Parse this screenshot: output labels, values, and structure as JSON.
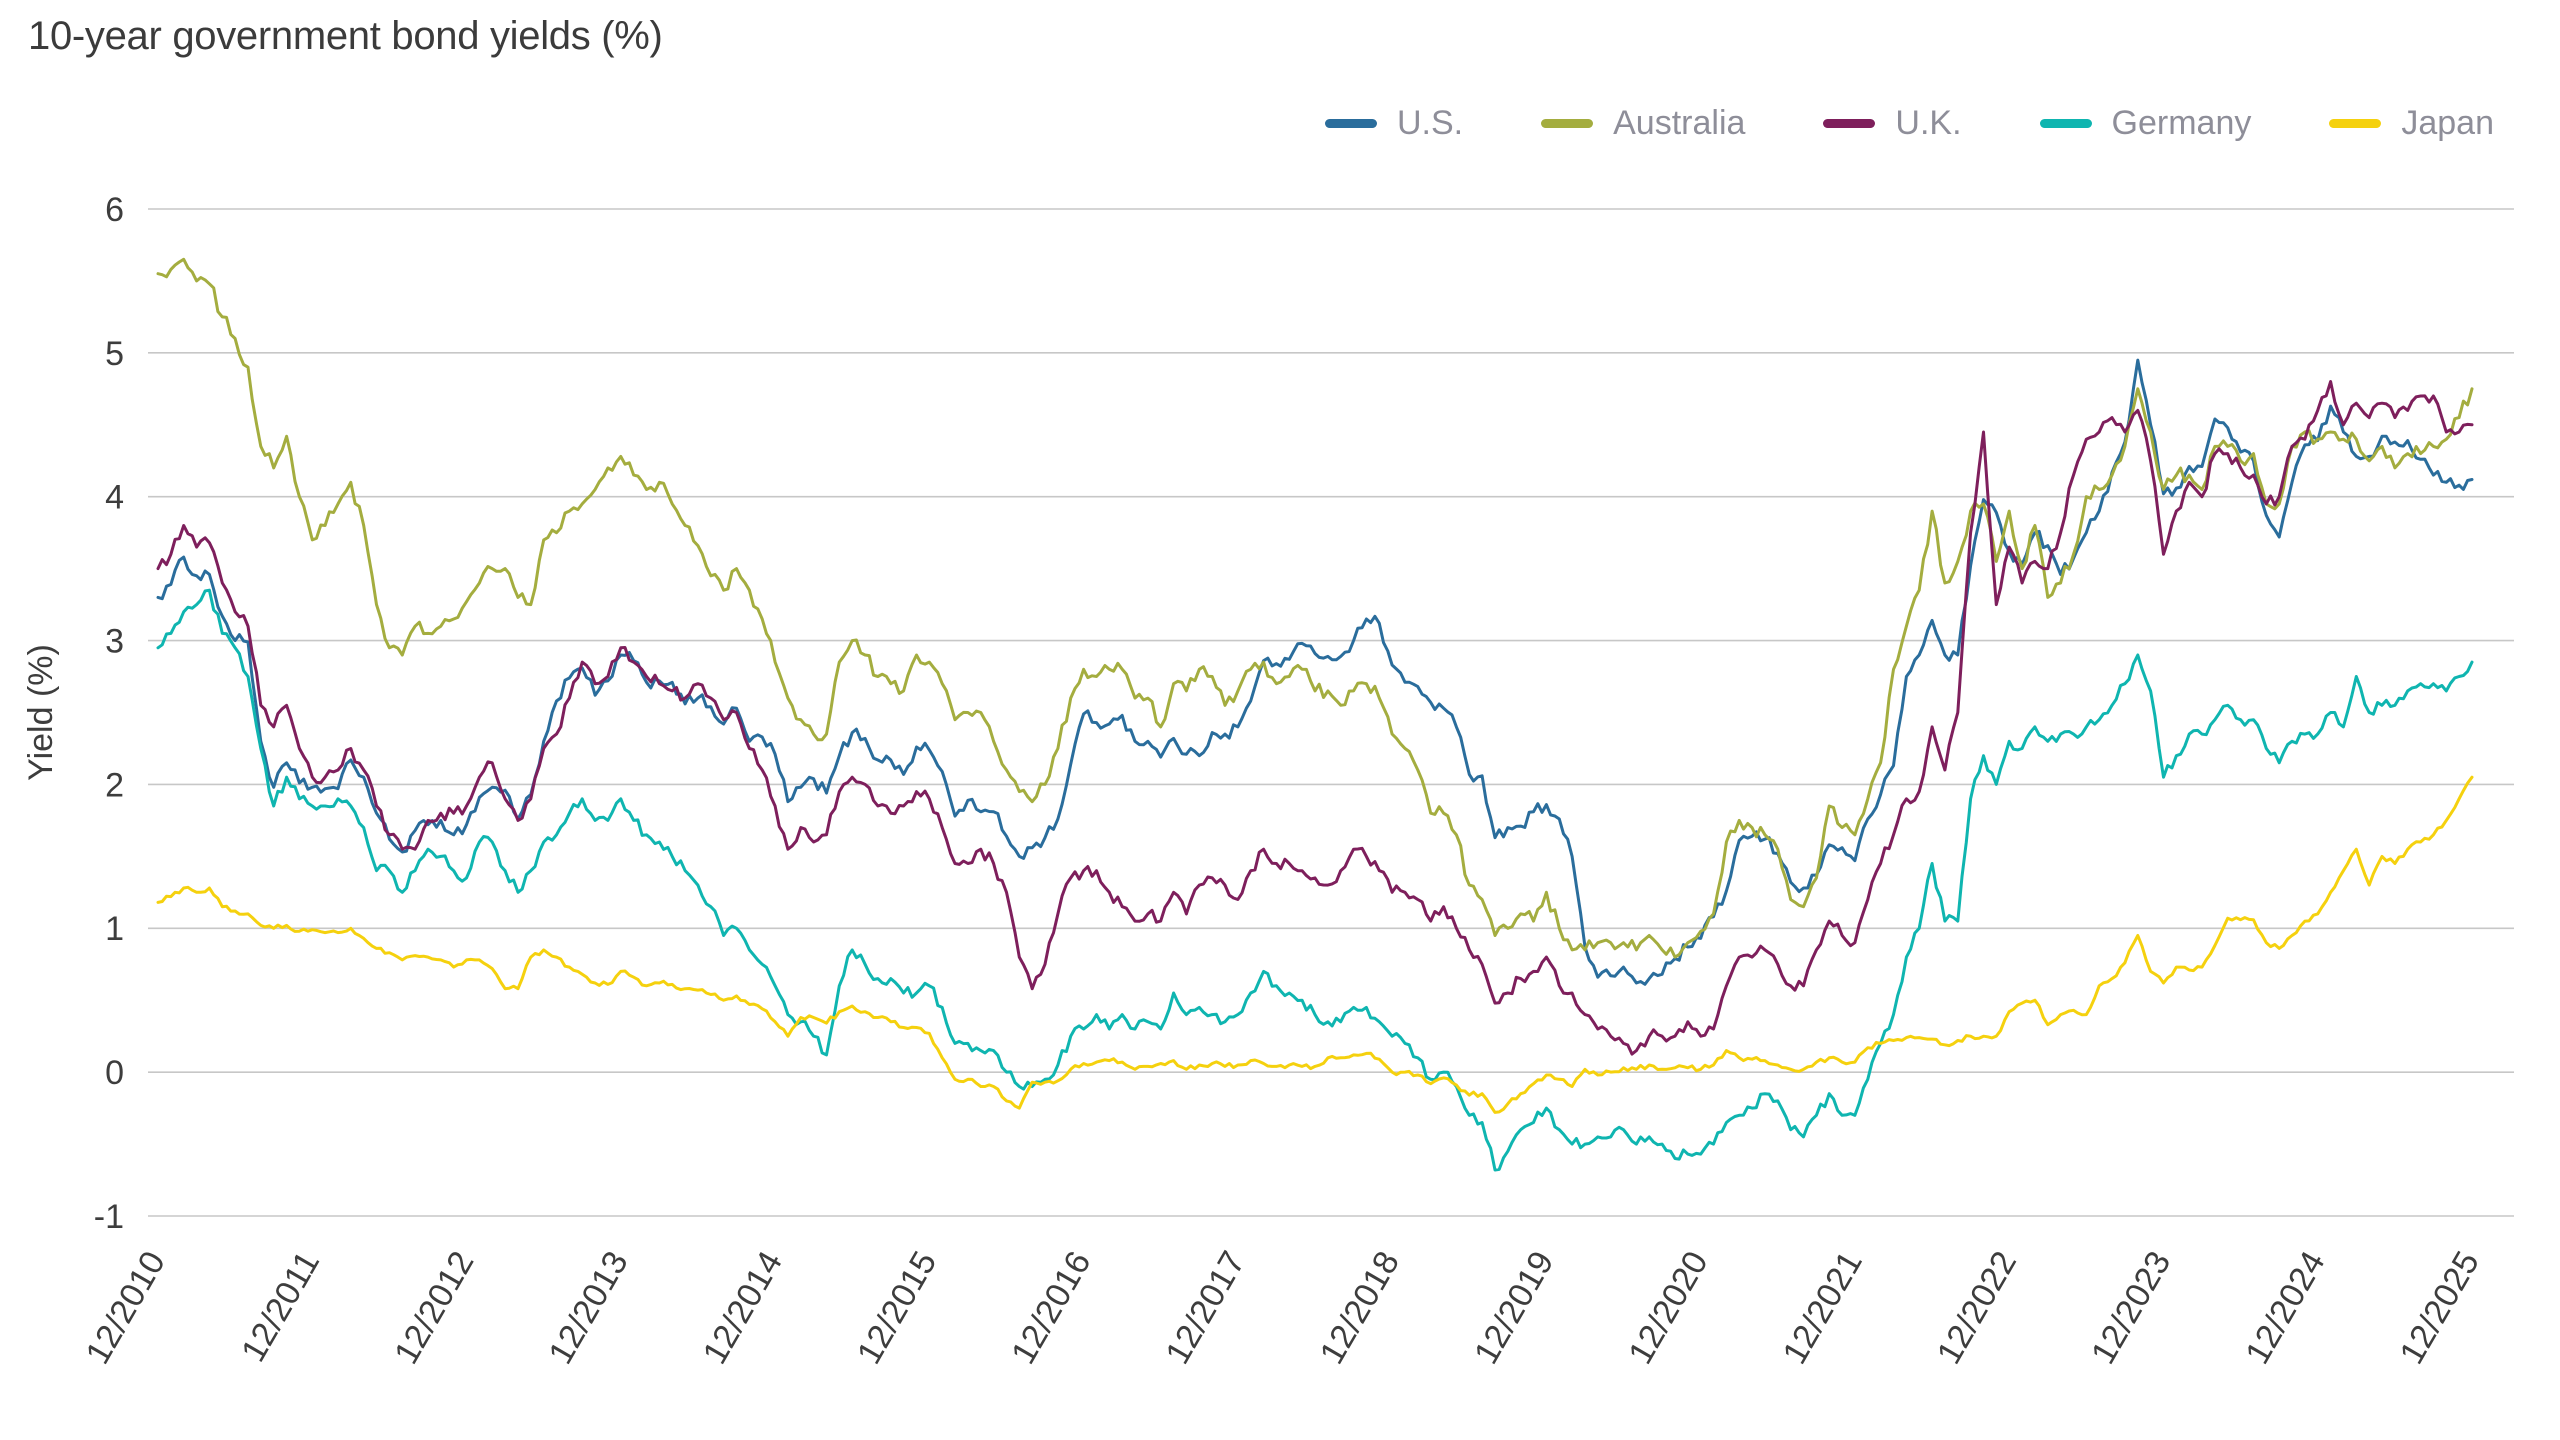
{
  "page": {
    "background": "#ffffff"
  },
  "chart_data": {
    "type": "line",
    "title": "10-year government bond yields (%)",
    "ylabel": "Yield (%)",
    "xlabel": "",
    "ylim": [
      -1,
      6
    ],
    "yticks": [
      -1,
      0,
      1,
      2,
      3,
      4,
      5,
      6
    ],
    "grid": "horizontal",
    "gridline_color": "#c7c7c7",
    "legend_position": "top-right",
    "x_unit": "month",
    "x_tick_every": 12,
    "x_labels": [
      "12/2010",
      "12/2011",
      "12/2012",
      "12/2013",
      "12/2014",
      "12/2015",
      "12/2016",
      "12/2017",
      "12/2018",
      "12/2019",
      "12/2020",
      "12/2021",
      "12/2022",
      "12/2023",
      "12/2024",
      "12/2025"
    ],
    "series": [
      {
        "name": "U.S.",
        "color": "#2a6d9c",
        "values": [
          3.3,
          3.39,
          3.58,
          3.45,
          3.46,
          3.17,
          3.0,
          2.99,
          2.3,
          1.98,
          2.15,
          2.01,
          1.98,
          1.97,
          1.97,
          2.17,
          2.05,
          1.8,
          1.62,
          1.53,
          1.68,
          1.72,
          1.75,
          1.65,
          1.72,
          1.91,
          1.98,
          1.96,
          1.76,
          1.93,
          2.3,
          2.58,
          2.74,
          2.81,
          2.62,
          2.72,
          2.9,
          2.86,
          2.71,
          2.72,
          2.71,
          2.56,
          2.6,
          2.54,
          2.42,
          2.53,
          2.3,
          2.33,
          2.21,
          1.88,
          1.98,
          2.04,
          1.94,
          2.2,
          2.36,
          2.32,
          2.17,
          2.17,
          2.07,
          2.26,
          2.24,
          2.09,
          1.78,
          1.89,
          1.81,
          1.81,
          1.64,
          1.5,
          1.56,
          1.63,
          1.76,
          2.14,
          2.49,
          2.43,
          2.42,
          2.48,
          2.3,
          2.3,
          2.19,
          2.32,
          2.21,
          2.2,
          2.36,
          2.35,
          2.4,
          2.58,
          2.86,
          2.84,
          2.87,
          2.98,
          2.91,
          2.89,
          2.89,
          3.0,
          3.15,
          3.12,
          2.83,
          2.71,
          2.68,
          2.57,
          2.53,
          2.4,
          2.07,
          2.06,
          1.63,
          1.7,
          1.71,
          1.81,
          1.86,
          1.76,
          1.5,
          0.87,
          0.66,
          0.67,
          0.73,
          0.62,
          0.65,
          0.68,
          0.79,
          0.87,
          0.93,
          1.08,
          1.26,
          1.61,
          1.64,
          1.62,
          1.52,
          1.32,
          1.28,
          1.37,
          1.58,
          1.56,
          1.47,
          1.76,
          1.93,
          2.13,
          2.75,
          2.9,
          3.14,
          2.9,
          2.9,
          3.52,
          3.98,
          3.89,
          3.62,
          3.53,
          3.75,
          3.66,
          3.46,
          3.57,
          3.75,
          3.9,
          4.17,
          4.38,
          4.95,
          4.5,
          4.02,
          4.06,
          4.21,
          4.21,
          4.54,
          4.48,
          4.31,
          4.25,
          3.87,
          3.72,
          4.1,
          4.36,
          4.39,
          4.63,
          4.45,
          4.28,
          4.28,
          4.42,
          4.38,
          4.39,
          4.26,
          4.15,
          4.1,
          4.08,
          4.12
        ]
      },
      {
        "name": "Australia",
        "color": "#a4ad3f",
        "values": [
          5.55,
          5.58,
          5.65,
          5.5,
          5.48,
          5.25,
          5.1,
          4.9,
          4.35,
          4.2,
          4.42,
          4.0,
          3.7,
          3.8,
          3.95,
          4.1,
          3.8,
          3.25,
          2.95,
          2.9,
          3.1,
          3.05,
          3.1,
          3.15,
          3.27,
          3.4,
          3.5,
          3.5,
          3.3,
          3.25,
          3.7,
          3.75,
          3.9,
          3.95,
          4.05,
          4.2,
          4.28,
          4.15,
          4.05,
          4.1,
          3.95,
          3.8,
          3.66,
          3.45,
          3.35,
          3.5,
          3.35,
          3.15,
          2.85,
          2.6,
          2.45,
          2.35,
          2.35,
          2.85,
          3.0,
          2.9,
          2.75,
          2.7,
          2.65,
          2.9,
          2.85,
          2.7,
          2.45,
          2.5,
          2.5,
          2.3,
          2.1,
          1.95,
          1.88,
          2.0,
          2.25,
          2.6,
          2.8,
          2.75,
          2.8,
          2.8,
          2.6,
          2.6,
          2.4,
          2.7,
          2.65,
          2.8,
          2.75,
          2.55,
          2.65,
          2.8,
          2.85,
          2.7,
          2.75,
          2.8,
          2.65,
          2.65,
          2.55,
          2.65,
          2.7,
          2.6,
          2.35,
          2.25,
          2.1,
          1.8,
          1.8,
          1.65,
          1.3,
          1.2,
          0.95,
          1.0,
          1.1,
          1.05,
          1.25,
          1.0,
          0.85,
          0.85,
          0.9,
          0.9,
          0.9,
          0.85,
          0.95,
          0.85,
          0.8,
          0.9,
          0.98,
          1.1,
          1.6,
          1.75,
          1.7,
          1.65,
          1.55,
          1.2,
          1.15,
          1.35,
          1.85,
          1.7,
          1.65,
          1.9,
          2.15,
          2.8,
          3.1,
          3.35,
          3.9,
          3.4,
          3.55,
          3.9,
          3.95,
          3.55,
          3.9,
          3.5,
          3.8,
          3.3,
          3.4,
          3.6,
          4.0,
          4.05,
          4.15,
          4.35,
          4.75,
          4.45,
          4.05,
          4.15,
          4.15,
          4.05,
          4.35,
          4.35,
          4.25,
          4.3,
          3.95,
          3.95,
          4.35,
          4.45,
          4.4,
          4.45,
          4.4,
          4.4,
          4.25,
          4.35,
          4.2,
          4.3,
          4.3,
          4.35,
          4.4,
          4.55,
          4.75
        ]
      },
      {
        "name": "U.K.",
        "color": "#7e1f5c",
        "values": [
          3.5,
          3.6,
          3.8,
          3.65,
          3.68,
          3.4,
          3.2,
          3.1,
          2.55,
          2.4,
          2.55,
          2.25,
          2.05,
          2.05,
          2.1,
          2.25,
          2.1,
          1.85,
          1.65,
          1.55,
          1.55,
          1.75,
          1.8,
          1.8,
          1.85,
          2.05,
          2.15,
          1.9,
          1.75,
          1.9,
          2.25,
          2.35,
          2.6,
          2.85,
          2.7,
          2.75,
          2.95,
          2.85,
          2.75,
          2.7,
          2.65,
          2.6,
          2.7,
          2.6,
          2.45,
          2.5,
          2.25,
          2.1,
          1.85,
          1.55,
          1.7,
          1.6,
          1.65,
          1.95,
          2.05,
          2.0,
          1.85,
          1.8,
          1.85,
          1.95,
          1.9,
          1.7,
          1.45,
          1.45,
          1.55,
          1.45,
          1.25,
          0.8,
          0.58,
          0.75,
          1.1,
          1.35,
          1.4,
          1.4,
          1.25,
          1.15,
          1.05,
          1.1,
          1.05,
          1.25,
          1.1,
          1.3,
          1.35,
          1.3,
          1.2,
          1.4,
          1.55,
          1.45,
          1.45,
          1.4,
          1.35,
          1.3,
          1.4,
          1.55,
          1.5,
          1.4,
          1.25,
          1.25,
          1.2,
          1.05,
          1.15,
          1.0,
          0.85,
          0.75,
          0.48,
          0.55,
          0.65,
          0.7,
          0.8,
          0.6,
          0.55,
          0.4,
          0.3,
          0.25,
          0.2,
          0.15,
          0.25,
          0.25,
          0.25,
          0.35,
          0.25,
          0.3,
          0.6,
          0.8,
          0.8,
          0.85,
          0.75,
          0.6,
          0.6,
          0.85,
          1.05,
          0.95,
          0.9,
          1.2,
          1.45,
          1.65,
          1.9,
          1.95,
          2.4,
          2.1,
          2.5,
          3.75,
          4.45,
          3.25,
          3.65,
          3.4,
          3.55,
          3.5,
          3.75,
          4.15,
          4.4,
          4.45,
          4.55,
          4.45,
          4.6,
          4.25,
          3.6,
          3.9,
          4.1,
          4.0,
          4.3,
          4.3,
          4.2,
          4.15,
          3.95,
          4.0,
          4.35,
          4.4,
          4.6,
          4.8,
          4.5,
          4.65,
          4.55,
          4.65,
          4.55,
          4.6,
          4.7,
          4.7,
          4.45,
          4.45,
          4.5
        ]
      },
      {
        "name": "Germany",
        "color": "#0fb5b0",
        "values": [
          2.95,
          3.05,
          3.2,
          3.25,
          3.35,
          3.05,
          2.95,
          2.75,
          2.25,
          1.85,
          2.05,
          1.9,
          1.85,
          1.85,
          1.9,
          1.85,
          1.7,
          1.4,
          1.4,
          1.25,
          1.4,
          1.55,
          1.5,
          1.4,
          1.35,
          1.6,
          1.6,
          1.4,
          1.25,
          1.4,
          1.6,
          1.65,
          1.8,
          1.9,
          1.75,
          1.75,
          1.9,
          1.75,
          1.65,
          1.6,
          1.5,
          1.4,
          1.3,
          1.15,
          0.95,
          1.0,
          0.85,
          0.75,
          0.6,
          0.4,
          0.35,
          0.25,
          0.12,
          0.6,
          0.85,
          0.75,
          0.65,
          0.65,
          0.55,
          0.55,
          0.6,
          0.45,
          0.2,
          0.2,
          0.15,
          0.15,
          0.0,
          -0.1,
          -0.1,
          -0.05,
          0.05,
          0.25,
          0.3,
          0.4,
          0.3,
          0.4,
          0.3,
          0.35,
          0.3,
          0.55,
          0.4,
          0.45,
          0.4,
          0.35,
          0.4,
          0.55,
          0.7,
          0.6,
          0.55,
          0.5,
          0.4,
          0.35,
          0.35,
          0.45,
          0.45,
          0.35,
          0.25,
          0.2,
          0.1,
          -0.05,
          0.0,
          -0.1,
          -0.3,
          -0.35,
          -0.68,
          -0.55,
          -0.4,
          -0.35,
          -0.25,
          -0.4,
          -0.5,
          -0.5,
          -0.45,
          -0.45,
          -0.4,
          -0.5,
          -0.45,
          -0.5,
          -0.6,
          -0.57,
          -0.57,
          -0.5,
          -0.35,
          -0.3,
          -0.25,
          -0.15,
          -0.2,
          -0.4,
          -0.45,
          -0.3,
          -0.15,
          -0.3,
          -0.3,
          -0.05,
          0.2,
          0.4,
          0.8,
          1.0,
          1.45,
          1.05,
          1.05,
          1.9,
          2.2,
          2.0,
          2.3,
          2.25,
          2.4,
          2.3,
          2.35,
          2.35,
          2.4,
          2.45,
          2.55,
          2.7,
          2.9,
          2.65,
          2.05,
          2.2,
          2.35,
          2.35,
          2.45,
          2.55,
          2.45,
          2.45,
          2.25,
          2.15,
          2.3,
          2.35,
          2.35,
          2.5,
          2.4,
          2.75,
          2.5,
          2.55,
          2.55,
          2.65,
          2.7,
          2.7,
          2.65,
          2.75,
          2.85
        ]
      },
      {
        "name": "Japan",
        "color": "#f5d10e",
        "values": [
          1.18,
          1.22,
          1.28,
          1.25,
          1.28,
          1.15,
          1.12,
          1.1,
          1.02,
          1.0,
          1.02,
          0.98,
          0.99,
          0.97,
          0.97,
          1.0,
          0.93,
          0.86,
          0.83,
          0.78,
          0.81,
          0.8,
          0.78,
          0.73,
          0.78,
          0.78,
          0.72,
          0.58,
          0.58,
          0.8,
          0.85,
          0.8,
          0.73,
          0.68,
          0.62,
          0.61,
          0.7,
          0.66,
          0.6,
          0.62,
          0.61,
          0.58,
          0.57,
          0.54,
          0.5,
          0.53,
          0.47,
          0.44,
          0.35,
          0.25,
          0.38,
          0.38,
          0.34,
          0.42,
          0.46,
          0.42,
          0.38,
          0.35,
          0.31,
          0.31,
          0.27,
          0.1,
          -0.05,
          -0.05,
          -0.1,
          -0.1,
          -0.2,
          -0.25,
          -0.07,
          -0.07,
          -0.06,
          0.02,
          0.06,
          0.07,
          0.08,
          0.07,
          0.02,
          0.04,
          0.06,
          0.08,
          0.02,
          0.05,
          0.06,
          0.04,
          0.05,
          0.08,
          0.06,
          0.04,
          0.05,
          0.04,
          0.04,
          0.1,
          0.1,
          0.12,
          0.13,
          0.09,
          0.0,
          0.0,
          -0.02,
          -0.08,
          -0.04,
          -0.09,
          -0.16,
          -0.15,
          -0.28,
          -0.22,
          -0.15,
          -0.08,
          -0.02,
          -0.05,
          -0.1,
          0.02,
          -0.02,
          0.0,
          0.03,
          0.02,
          0.05,
          0.02,
          0.03,
          0.03,
          0.02,
          0.05,
          0.15,
          0.1,
          0.09,
          0.08,
          0.05,
          0.02,
          0.02,
          0.07,
          0.1,
          0.07,
          0.07,
          0.17,
          0.2,
          0.22,
          0.24,
          0.24,
          0.23,
          0.19,
          0.22,
          0.25,
          0.25,
          0.25,
          0.42,
          0.48,
          0.5,
          0.33,
          0.4,
          0.43,
          0.4,
          0.6,
          0.65,
          0.76,
          0.95,
          0.7,
          0.62,
          0.73,
          0.71,
          0.73,
          0.88,
          1.07,
          1.06,
          1.06,
          0.9,
          0.86,
          0.95,
          1.05,
          1.1,
          1.25,
          1.4,
          1.55,
          1.3,
          1.5,
          1.45,
          1.55,
          1.6,
          1.65,
          1.75,
          1.9,
          2.05
        ]
      }
    ]
  }
}
